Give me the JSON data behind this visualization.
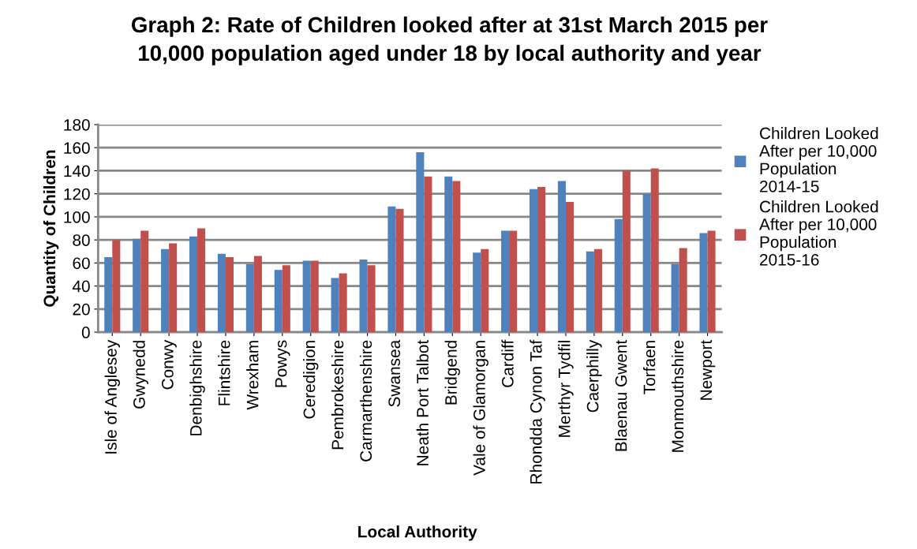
{
  "chart_data": {
    "type": "bar",
    "title": "Graph 2: Rate of Children looked after at 31st March 2015 per\n10,000 population aged under 18 by local authority and year",
    "xlabel": "Local Authority",
    "ylabel": "Quantity of Children",
    "categories": [
      "Isle of Anglesey",
      "Gwynedd",
      "Conwy",
      "Denbighshire",
      "Flintshire",
      "Wrexham",
      "Powys",
      "Ceredigion",
      "Pembrokeshire",
      "Carmarthenshire",
      "Swansea",
      "Neath Port Talbot",
      "Bridgend",
      "Vale of Glamorgan",
      "Cardiff",
      "Rhondda Cynon Taf",
      "Merthyr Tydfil",
      "Caerphilly",
      "Blaenau Gwent",
      "Torfaen",
      "Monmouthshire",
      "Newport"
    ],
    "series": [
      {
        "name": "Children Looked After per 10,000 Population 2014-15",
        "color": "#4f81bd",
        "values": [
          65,
          81,
          72,
          83,
          68,
          59,
          54,
          62,
          47,
          63,
          109,
          156,
          135,
          69,
          88,
          124,
          131,
          70,
          98,
          120,
          59,
          86
        ]
      },
      {
        "name": "Children Looked After per 10,000 Population 2015-16",
        "color": "#c0504d",
        "values": [
          80,
          88,
          77,
          90,
          65,
          66,
          58,
          62,
          51,
          58,
          107,
          135,
          131,
          72,
          88,
          126,
          113,
          72,
          140,
          142,
          73,
          88
        ]
      }
    ],
    "ylim": [
      0,
      180
    ],
    "yticks": [
      0,
      20,
      40,
      60,
      80,
      100,
      120,
      140,
      160,
      180
    ],
    "grid": "y",
    "legend": "right"
  }
}
